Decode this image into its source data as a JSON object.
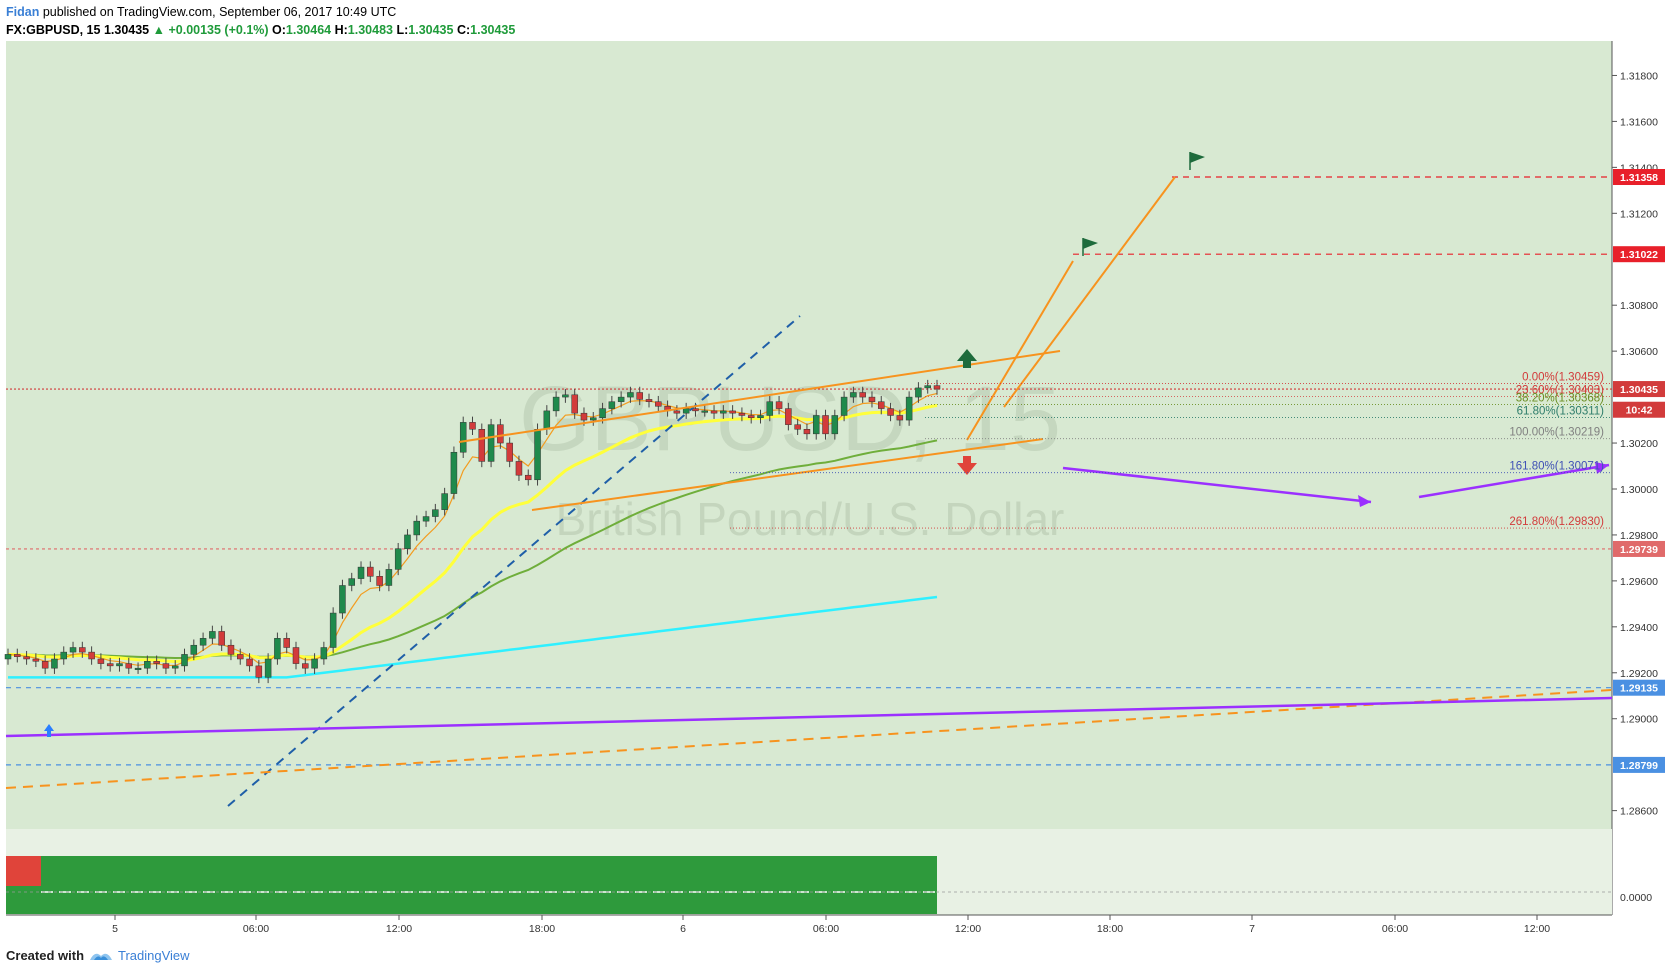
{
  "header": {
    "author": "Fidan",
    "published": " published on TradingView.com, September 06, 2017 10:49 UTC",
    "symbol_interval": "FX:GBPUSD, 15",
    "last": "1.30435",
    "change": "▲ +0.00135 (+0.1%)",
    "open_label": "O:",
    "open": "1.30464",
    "high_label": "H:",
    "high": "1.30483",
    "low_label": "L:",
    "low": "1.30435",
    "close_label": "C:",
    "close": "1.30435"
  },
  "footer": {
    "created_with": "Created with",
    "brand": "TradingView"
  },
  "colors": {
    "background": "#d8e9d2",
    "up": "#1f8a4c",
    "down": "#d23b3b",
    "ema_fast": "#f39c1f",
    "ema_mid": "#ffff3a",
    "ema_slow": "#6fae3b",
    "ema_long": "#2ff0ff",
    "channel": "#f7931e",
    "purple": "#9b30ff"
  },
  "chart_data": {
    "type": "line",
    "watermark": {
      "symbol": "GBPUSD, 15",
      "name": "British Pound/U.S. Dollar"
    },
    "y_ticks": [
      "1.31800",
      "1.31600",
      "1.31400",
      "1.31200",
      "1.30800",
      "1.30600",
      "1.30200",
      "1.30000",
      "1.29800",
      "1.29600",
      "1.29400",
      "1.29200",
      "1.29000",
      "1.28600"
    ],
    "ylim": [
      1.2852,
      1.3195
    ],
    "x_ticks": [
      "5",
      "06:00",
      "12:00",
      "18:00",
      "6",
      "06:00",
      "12:00",
      "18:00",
      "7",
      "06:00",
      "12:00"
    ],
    "price_tags": [
      {
        "value": "1.31358",
        "color": "#e8202a"
      },
      {
        "value": "1.31022",
        "color": "#e8202a"
      },
      {
        "value": "1.30435",
        "color": "#d23b3b"
      },
      {
        "value": "10:42",
        "color": "#d23b3b"
      },
      {
        "value": "1.29739",
        "color": "#e06a6a"
      },
      {
        "value": "1.29135",
        "color": "#4a90e2"
      },
      {
        "value": "1.28799",
        "color": "#4a90e2"
      }
    ],
    "horizontal_levels": [
      1.31358,
      1.31022,
      1.30435,
      1.29739,
      1.29135,
      1.28799
    ],
    "fibonacci": [
      {
        "label": "0.00%(1.30459)",
        "price": 1.30459,
        "color": "#d23b3b"
      },
      {
        "label": "23.60%(1.30403)",
        "price": 1.30403,
        "color": "#d23b3b"
      },
      {
        "label": "38.20%(1.30368)",
        "price": 1.30368,
        "color": "#6b8e23"
      },
      {
        "label": "61.80%(1.30311)",
        "price": 1.30311,
        "color": "#2e7d6b"
      },
      {
        "label": "100.00%(1.30219)",
        "price": 1.30219,
        "color": "#808080"
      },
      {
        "label": "161.80%(1.30071)",
        "price": 1.30071,
        "color": "#3f51b5"
      },
      {
        "label": "261.80%(1.29830)",
        "price": 1.2983,
        "color": "#d23b3b"
      }
    ],
    "oscillator": {
      "tick": "0.0000"
    },
    "series": [
      {
        "values": [
          1.2928,
          1.2927,
          1.2926,
          1.2925,
          1.2922,
          1.2926,
          1.2929,
          1.2931,
          1.2929,
          1.2926,
          1.2924,
          1.2923,
          1.2924,
          1.2922,
          1.2922,
          1.2925,
          1.2924,
          1.2922,
          1.2923,
          1.2928,
          1.2932,
          1.2935,
          1.2938,
          1.2932,
          1.2928,
          1.2926,
          1.2923,
          1.2918,
          1.2926,
          1.2935,
          1.2931,
          1.2924,
          1.2922,
          1.2926,
          1.2931,
          1.2946,
          1.2958,
          1.2961,
          1.2966,
          1.2962,
          1.2958,
          1.2965,
          1.2974,
          1.298,
          1.2986,
          1.2988,
          1.2991,
          1.2998,
          1.3016,
          1.3029,
          1.3026,
          1.3012,
          1.3028,
          1.302,
          1.3012,
          1.3006,
          1.3004,
          1.3026,
          1.3034,
          1.304,
          1.3041,
          1.3033,
          1.303,
          1.3031,
          1.3035,
          1.3038,
          1.304,
          1.3042,
          1.3039,
          1.3038,
          1.3036,
          1.3034,
          1.3033,
          1.3035,
          1.3034,
          1.3034,
          1.3033,
          1.3034,
          1.3033,
          1.3032,
          1.3031,
          1.3032,
          1.3038,
          1.3035,
          1.3028,
          1.3026,
          1.3024,
          1.3032,
          1.3024,
          1.3032,
          1.304,
          1.3042,
          1.304,
          1.3038,
          1.3035,
          1.3032,
          1.303,
          1.304,
          1.3044,
          1.3045,
          1.30435
        ]
      }
    ]
  }
}
